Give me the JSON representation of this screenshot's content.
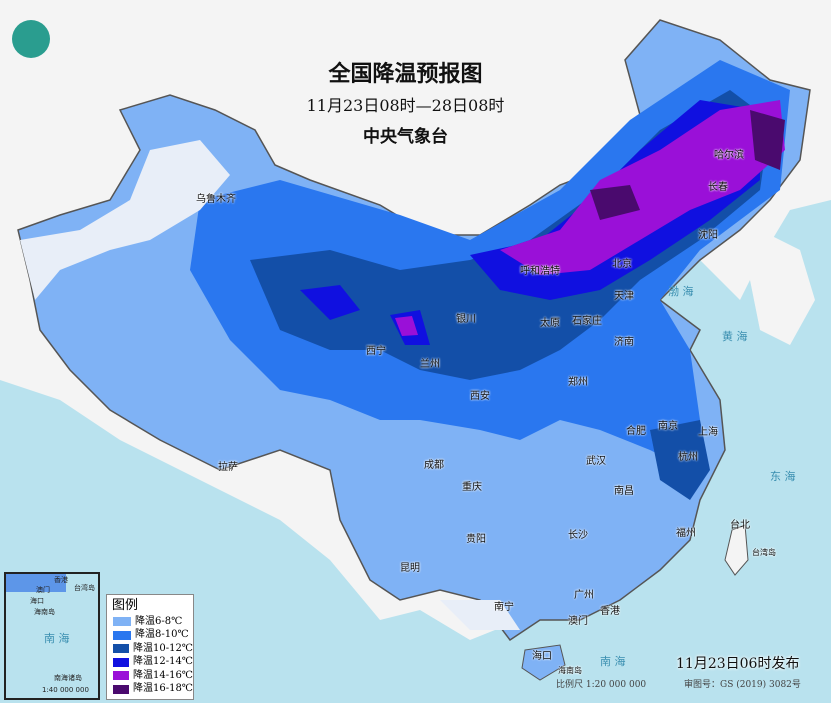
{
  "title": "全国降温预报图",
  "period": "11月23日08时—28日08时",
  "issuer": "中央气象台",
  "logo": "cma-logo",
  "legend": {
    "title": "图例",
    "items": [
      {
        "label": "降温6-8℃",
        "color": "#7fb2f5"
      },
      {
        "label": "降温8-10℃",
        "color": "#2a77ef"
      },
      {
        "label": "降温10-12℃",
        "color": "#134fa8"
      },
      {
        "label": "降温12-14℃",
        "color": "#1010e0"
      },
      {
        "label": "降温14-16℃",
        "color": "#9a10d8"
      },
      {
        "label": "降温16-18℃",
        "color": "#4a0a6e"
      }
    ]
  },
  "cities": [
    {
      "name": "乌鲁木齐"
    },
    {
      "name": "拉萨"
    },
    {
      "name": "西宁"
    },
    {
      "name": "兰州"
    },
    {
      "name": "银川"
    },
    {
      "name": "呼和浩特"
    },
    {
      "name": "北京"
    },
    {
      "name": "天津"
    },
    {
      "name": "石家庄"
    },
    {
      "name": "太原"
    },
    {
      "name": "济南"
    },
    {
      "name": "郑州"
    },
    {
      "name": "西安"
    },
    {
      "name": "成都"
    },
    {
      "name": "重庆"
    },
    {
      "name": "贵阳"
    },
    {
      "name": "昆明"
    },
    {
      "name": "南宁"
    },
    {
      "name": "广州"
    },
    {
      "name": "香港"
    },
    {
      "name": "澳门"
    },
    {
      "name": "海口"
    },
    {
      "name": "长沙"
    },
    {
      "name": "南昌"
    },
    {
      "name": "武汉"
    },
    {
      "name": "合肥"
    },
    {
      "name": "南京"
    },
    {
      "name": "上海"
    },
    {
      "name": "杭州"
    },
    {
      "name": "福州"
    },
    {
      "name": "台北"
    },
    {
      "name": "长春"
    },
    {
      "name": "哈尔滨"
    },
    {
      "name": "沈阳"
    }
  ],
  "seas": {
    "bohai": "渤 海",
    "huanghai": "黄 海",
    "donghai": "东 海",
    "nanhai": "南  海"
  },
  "islands": {
    "hainan": "海南岛",
    "taiwan": "台湾岛"
  },
  "inset": {
    "hongkong": "香港",
    "macau": "澳门",
    "taiwan": "台湾岛",
    "haikou": "海口",
    "hainan": "海南岛",
    "sea": "南 海",
    "islands": "南海诸岛",
    "scale": "1:40 000 000"
  },
  "published": "11月23日06时发布",
  "scale": "比例尺 1:20 000 000",
  "map_no": "审图号：GS (2019) 3082号"
}
